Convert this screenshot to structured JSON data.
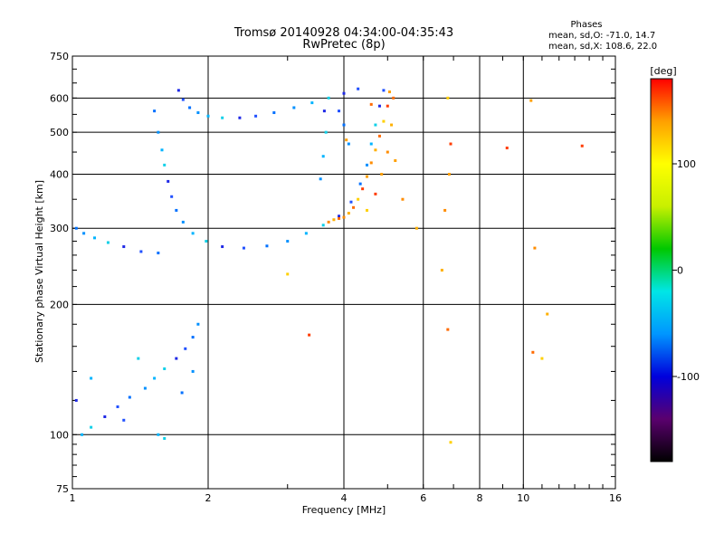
{
  "chart_data": {
    "type": "scatter",
    "title": "Tromsø 20140928 04:34:00-04:35:43",
    "subtitle": "RwPretec (8p)",
    "xlabel": "Frequency [MHz]",
    "ylabel": "Stationary phase Virtual Height [km]",
    "x_scale": "log",
    "y_scale": "log",
    "xlim": [
      1,
      16
    ],
    "ylim": [
      75,
      750
    ],
    "x_ticks": [
      1,
      2,
      4,
      6,
      8,
      10,
      16
    ],
    "y_ticks": [
      75,
      100,
      200,
      300,
      400,
      500,
      600,
      750
    ],
    "grid": true,
    "legend": {
      "title": "Phases",
      "lines": [
        "mean, sd,O: -71.0, 14.7",
        "mean, sd,X: 108.6, 22.0"
      ],
      "placement": "top-right"
    },
    "colorbar": {
      "label": "[deg]",
      "range": [
        -180,
        180
      ],
      "ticks": [
        100,
        0,
        -100
      ],
      "colors": [
        "#000000",
        "#5a006e",
        "#0000dc",
        "#0096ff",
        "#00e6e6",
        "#00c800",
        "#c8f000",
        "#ffff00",
        "#ffa000",
        "#ff0000"
      ]
    },
    "series": [
      {
        "points": [
          [
            1.72,
            625
          ],
          [
            1.76,
            595
          ],
          [
            1.82,
            570
          ],
          [
            1.9,
            555
          ],
          [
            2.0,
            545
          ],
          [
            2.15,
            540
          ],
          [
            2.35,
            540
          ],
          [
            2.55,
            545
          ],
          [
            2.8,
            555
          ],
          [
            3.1,
            570
          ],
          [
            3.4,
            585
          ],
          [
            3.7,
            600
          ],
          [
            4.0,
            615
          ],
          [
            4.3,
            630
          ],
          [
            1.52,
            560
          ],
          [
            1.55,
            500
          ],
          [
            1.58,
            455
          ],
          [
            1.6,
            420
          ],
          [
            1.63,
            385
          ],
          [
            1.66,
            355
          ],
          [
            1.7,
            330
          ],
          [
            1.76,
            310
          ],
          [
            1.85,
            292
          ],
          [
            1.98,
            280
          ],
          [
            2.15,
            272
          ],
          [
            2.4,
            270
          ],
          [
            2.7,
            273
          ],
          [
            3.0,
            280
          ],
          [
            3.3,
            292
          ],
          [
            3.6,
            305
          ],
          [
            3.9,
            320
          ],
          [
            4.15,
            345
          ],
          [
            4.35,
            380
          ],
          [
            4.5,
            420
          ],
          [
            4.6,
            470
          ],
          [
            4.7,
            520
          ],
          [
            4.8,
            575
          ],
          [
            4.9,
            625
          ],
          [
            1.02,
            300
          ],
          [
            1.06,
            292
          ],
          [
            1.12,
            285
          ],
          [
            1.2,
            278
          ],
          [
            1.3,
            272
          ],
          [
            1.42,
            265
          ],
          [
            1.55,
            263
          ],
          [
            3.55,
            390
          ],
          [
            3.6,
            440
          ],
          [
            3.65,
            500
          ],
          [
            3.62,
            560
          ],
          [
            3.9,
            560
          ],
          [
            4.0,
            520
          ],
          [
            4.1,
            470
          ],
          [
            1.05,
            100
          ],
          [
            1.1,
            104
          ],
          [
            1.18,
            110
          ],
          [
            1.26,
            116
          ],
          [
            1.34,
            122
          ],
          [
            1.45,
            128
          ],
          [
            1.52,
            135
          ],
          [
            1.6,
            142
          ],
          [
            1.7,
            150
          ],
          [
            1.78,
            158
          ],
          [
            1.85,
            168
          ],
          [
            1.9,
            180
          ],
          [
            1.55,
            100
          ],
          [
            1.6,
            98
          ],
          [
            1.02,
            120
          ],
          [
            1.3,
            108
          ],
          [
            1.75,
            125
          ],
          [
            1.85,
            140
          ],
          [
            1.1,
            135
          ],
          [
            1.4,
            150
          ]
        ]
      },
      {
        "points": [
          [
            4.0,
            318
          ],
          [
            4.1,
            325
          ],
          [
            4.2,
            335
          ],
          [
            4.3,
            350
          ],
          [
            4.4,
            370
          ],
          [
            4.5,
            395
          ],
          [
            4.6,
            425
          ],
          [
            4.7,
            455
          ],
          [
            4.8,
            490
          ],
          [
            4.9,
            530
          ],
          [
            5.0,
            575
          ],
          [
            5.05,
            620
          ],
          [
            3.7,
            310
          ],
          [
            3.8,
            314
          ],
          [
            3.9,
            316
          ],
          [
            4.5,
            330
          ],
          [
            4.7,
            360
          ],
          [
            4.85,
            400
          ],
          [
            5.0,
            450
          ],
          [
            5.1,
            520
          ],
          [
            5.15,
            600
          ],
          [
            6.8,
            600
          ],
          [
            6.9,
            470
          ],
          [
            6.85,
            400
          ],
          [
            6.7,
            330
          ],
          [
            6.6,
            240
          ],
          [
            6.8,
            175
          ],
          [
            6.9,
            96
          ],
          [
            9.2,
            460
          ],
          [
            10.4,
            592
          ],
          [
            10.6,
            270
          ],
          [
            11.3,
            190
          ],
          [
            10.5,
            155
          ],
          [
            11.0,
            150
          ],
          [
            13.5,
            465
          ],
          [
            5.2,
            430
          ],
          [
            5.4,
            350
          ],
          [
            5.8,
            300
          ],
          [
            4.6,
            580
          ],
          [
            3.0,
            235
          ],
          [
            3.35,
            170
          ],
          [
            4.05,
            480
          ]
        ]
      }
    ]
  }
}
